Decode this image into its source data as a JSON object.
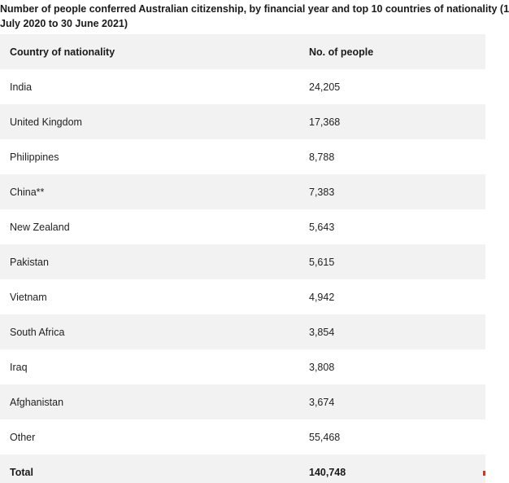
{
  "caption": {
    "line1": "Number of people conferred Australian citizenship, by financial year and top 10 countries of nationality (1",
    "line2": "July 2020 to 30 June 2021)"
  },
  "table": {
    "headers": [
      "Country of nationality",
      "No. of people"
    ],
    "rows": [
      [
        "India",
        "24,205"
      ],
      [
        "United Kingdom",
        "17,368"
      ],
      [
        "Philippines",
        "8,788"
      ],
      [
        "China**",
        "7,383"
      ],
      [
        "New Zealand",
        "5,643"
      ],
      [
        "Pakistan",
        "5,615"
      ],
      [
        "Vietnam",
        "4,942"
      ],
      [
        "South Africa",
        "3,854"
      ],
      [
        "Iraq",
        "3,808"
      ],
      [
        "Afghanistan",
        "3,674"
      ],
      [
        "Other",
        "55,468"
      ]
    ],
    "total": [
      "Total",
      "140,748"
    ]
  },
  "colors": {
    "stripe": "#f2f2f2",
    "divider": "#8a8a8a",
    "edge_accent": "#d0391e"
  }
}
